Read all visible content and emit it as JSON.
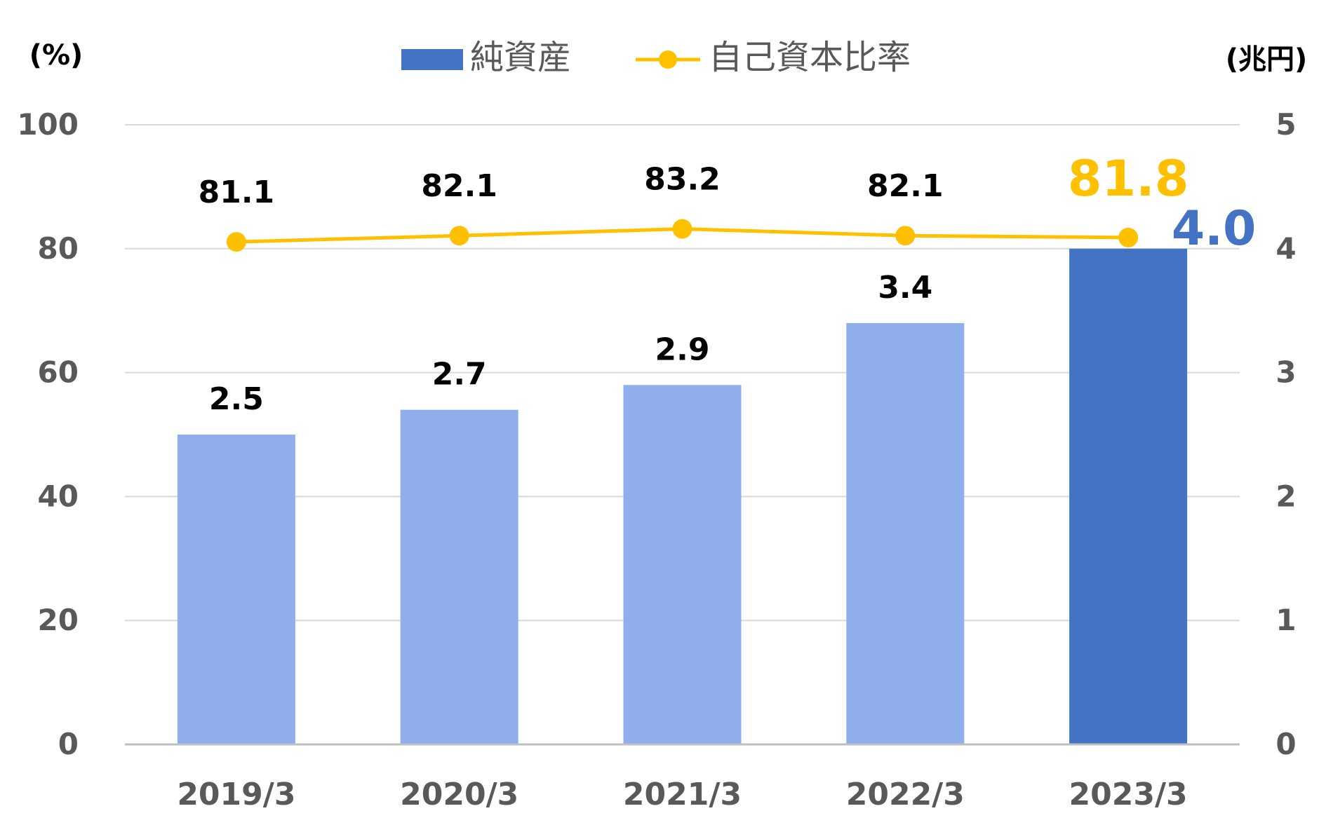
{
  "chart_data": {
    "type": "bar",
    "categories": [
      "2019/3",
      "2020/3",
      "2021/3",
      "2022/3",
      "2023/3"
    ],
    "series": [
      {
        "name": "純資産",
        "type": "bar",
        "axis": "right",
        "values": [
          2.5,
          2.7,
          2.9,
          3.4,
          4.0
        ],
        "labels": [
          "2.5",
          "2.7",
          "2.9",
          "3.4",
          "4.0"
        ]
      },
      {
        "name": "自己資本比率",
        "type": "line",
        "axis": "left",
        "values": [
          81.1,
          82.1,
          83.2,
          82.1,
          81.8
        ],
        "labels": [
          "81.1",
          "82.1",
          "83.2",
          "82.1",
          "81.8"
        ]
      }
    ],
    "left_axis": {
      "unit": "(%)",
      "ylim": [
        0,
        100
      ],
      "ticks": [
        "0",
        "20",
        "40",
        "60",
        "80",
        "100"
      ]
    },
    "right_axis": {
      "unit": "(兆円)",
      "ylim": [
        0,
        5
      ],
      "ticks": [
        "0",
        "1",
        "2",
        "3",
        "4",
        "5"
      ]
    },
    "legend": {
      "position": "top-center",
      "items": [
        "純資産",
        "自己資本比率"
      ]
    },
    "grid": true,
    "colors": {
      "bar": "#91aeec",
      "bar_highlight": "#4472c4",
      "line": "#ffc000",
      "grid": "#d9d9d9",
      "axis_text": "#595959"
    },
    "highlight_index": 4
  }
}
